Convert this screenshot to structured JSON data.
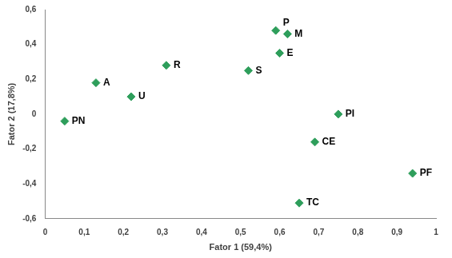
{
  "chart_data": {
    "type": "scatter",
    "x_label": "Fator 1 (59,4%)",
    "y_label": "Fator 2 (17,8%)",
    "point_labels": [
      "PN",
      "A",
      "U",
      "R",
      "S",
      "P",
      "M",
      "E",
      "PI",
      "CE",
      "PF",
      "TC"
    ],
    "x": [
      0.05,
      0.13,
      0.22,
      0.31,
      0.52,
      0.59,
      0.62,
      0.6,
      0.75,
      0.69,
      0.94,
      0.65
    ],
    "values": [
      -0.04,
      0.18,
      0.1,
      0.28,
      0.25,
      0.48,
      0.46,
      0.35,
      0.0,
      -0.16,
      -0.34,
      -0.51
    ],
    "color": "#2e9e5b",
    "marker": "diamond",
    "xlim": [
      0,
      1
    ],
    "xticks": [
      0,
      {
        "value": 0.1,
        "label": "0,1"
      },
      {
        "value": 0.2,
        "label": "0,2"
      },
      {
        "value": 0.3,
        "label": "0,3"
      },
      {
        "value": 0.4,
        "label": "0,4"
      },
      {
        "value": 0.5,
        "label": "0,5"
      },
      {
        "value": 0.6,
        "label": "0,6"
      },
      {
        "value": 0.7,
        "label": "0,7"
      },
      {
        "value": 0.8,
        "label": "0,8"
      },
      {
        "value": 0.9,
        "label": "0,9"
      },
      1
    ],
    "ylim": [
      -0.6,
      0.6
    ],
    "yticks": [
      {
        "value": -0.6,
        "label": "-0,6"
      },
      {
        "value": -0.4,
        "label": "-0,4"
      },
      {
        "value": -0.2,
        "label": "-0,2"
      },
      0,
      {
        "value": 0.2,
        "label": "0,2"
      },
      {
        "value": 0.4,
        "label": "0,4"
      },
      {
        "value": 0.6,
        "label": "0,6"
      }
    ],
    "grid": false
  }
}
